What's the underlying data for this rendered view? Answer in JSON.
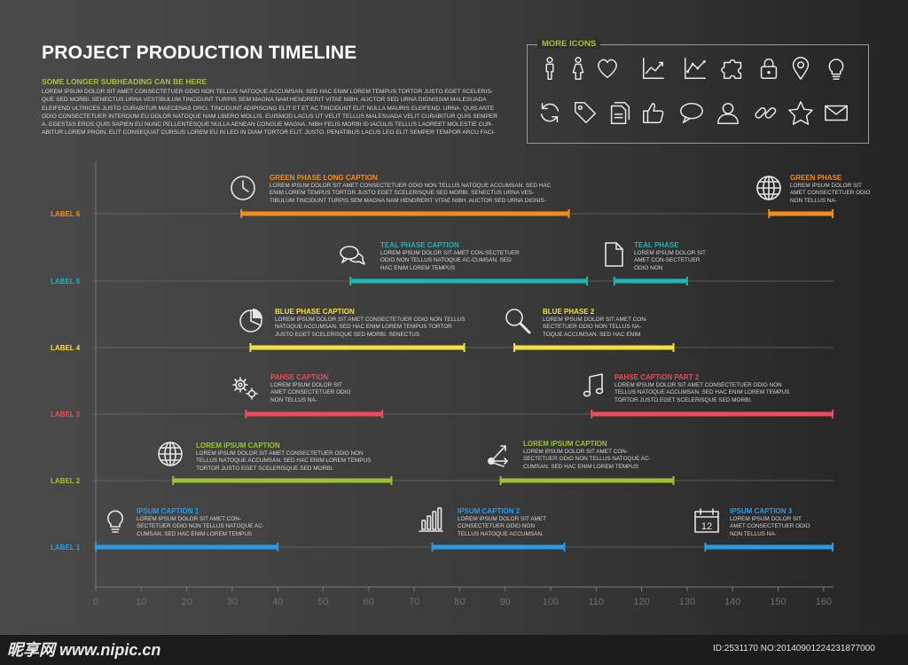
{
  "header": {
    "title": "PROJECT PRODUCTION TIMELINE",
    "subheading": "SOME LONGER SUBHEADING CAN BE HERE",
    "intro": "LOREM IPSUM DOLOR SIT AMET CONSECTETUER ODIO NON TELLUS NATOQUE ACCUMSAN. SED HAC ENIM LOREM TEMPUS TORTOR JUSTO EGET SCELERIS-QUE SED MORBI. SENECTUS URNA VESTIBULUM TINCIDUNT TURPIS SEM MAGNA NAM HENDRERIT VITAE NIBH. AUCTOR SED URNA DIGNISSIM MALESUADA ELEIFEND ULTRICES JUSTO CURABITUR MAECENAS ORCI. TINCIDUNT ADIPISCING ELIT ET ET AC TINCIDUNT ELIT NULLA MAURIS ELEIFEND. URNA. QUIS ANTE ODIO CONSECTETUER INTERDUM EU DOLOR NATOQUE NAM LIBERO MOLLIS. EUISMOD LACUS UT VELIT TELLUS MALESUADA VELIT CURABITUR QUIS SEMPER A. EGESTAS EROS QUIS SAPIEN EU NUNC PELLENTESQUE NULLA AENEAN CONGUE MAGNA. NIBH FELIS MORBI ID IACULIS TELLUS LAOREET MOLESTIE CUR-ABITUR LOREM PROIN. ELIT CONSEQUAT CURSUS LOREM EU IN LEO IN DIAM TORTOR ELIT. JUSTO. PENATIBUS LACUS LEO ELIT SEMPER TEMPOR ARCU FACI-"
  },
  "more_icons": {
    "title": "MORE ICONS",
    "icons": [
      "male-icon",
      "female-icon",
      "heart-icon",
      "line-chart-icon",
      "scatter-chart-icon",
      "puzzle-icon",
      "lock-icon",
      "map-pin-icon",
      "lightbulb-icon",
      "refresh-icon",
      "tag-icon",
      "documents-icon",
      "thumbs-up-icon",
      "speech-bubble-icon",
      "user-icon",
      "chain-link-icon",
      "star-icon",
      "envelope-icon"
    ]
  },
  "chart_data": {
    "type": "gantt",
    "x_ticks": [
      0,
      10,
      20,
      30,
      40,
      50,
      60,
      70,
      80,
      90,
      100,
      110,
      120,
      130,
      140,
      150,
      160
    ],
    "xlim": [
      0,
      162
    ],
    "grid": "horizontal",
    "rows": [
      {
        "label": "LABEL 6",
        "color": "#f28c1e",
        "bars": [
          {
            "start": 32,
            "end": 104
          },
          {
            "start": 148,
            "end": 162
          }
        ]
      },
      {
        "label": "LABEL 5",
        "color": "#1fb5b5",
        "bars": [
          {
            "start": 56,
            "end": 108
          },
          {
            "start": 114,
            "end": 130
          }
        ]
      },
      {
        "label": "LABEL 4",
        "color": "#f2e040",
        "bars": [
          {
            "start": 34,
            "end": 81
          },
          {
            "start": 92,
            "end": 127
          }
        ]
      },
      {
        "label": "LABEL 3",
        "color": "#ee4b5b",
        "bars": [
          {
            "start": 33,
            "end": 63
          },
          {
            "start": 109,
            "end": 162
          }
        ]
      },
      {
        "label": "LABEL 2",
        "color": "#9cc230",
        "bars": [
          {
            "start": 17,
            "end": 65
          },
          {
            "start": 89,
            "end": 127
          }
        ]
      },
      {
        "label": "LABEL 1",
        "color": "#2b9ae6",
        "bars": [
          {
            "start": 0,
            "end": 40
          },
          {
            "start": 74,
            "end": 103
          },
          {
            "start": 134,
            "end": 162
          }
        ]
      }
    ],
    "captions": [
      {
        "title": "GREEN PHASE LONG CAPTION",
        "text": "LOREM IPSUM DOLOR SIT AMET CONSECTETUER ODIO NON TELLUS NATOQUE ACCUMSAN. SED HAC ENIM LOREM TEMPUS TORTOR JUSTO EGET SCELERISQUE SED MORBI. SENECTUS URNA VES-TIBULUM TINCIDUNT TURPIS SEM MAGNA NAM HENDRERIT VITAE NIBH. AUCTOR SED URNA DIGNIS-",
        "icon": "clock-icon",
        "color": "#f28c1e"
      },
      {
        "title": "GREEN PHASE",
        "text": "LOREM IPSUM DOLOR SIT AMET CONSECTETUER ODIO NON TELLUS NA-",
        "icon": "globe-icon",
        "color": "#f28c1e"
      },
      {
        "title": "TEAL PHASE CAPTION",
        "text": "LOREM IPSUM DOLOR SIT AMET CON-SECTETUER ODIO NON TELLUS NATOQUE AC-CUMSAN. SED HAC ENIM LOREM TEMPUS",
        "icon": "chat-icon",
        "color": "#1fb5b5"
      },
      {
        "title": "TEAL PHASE",
        "text": "LOREM IPSUM DOLOR SIT AMET CON-SECTETUER ODIO NON",
        "icon": "document-icon",
        "color": "#1fb5b5"
      },
      {
        "title": "BLUE PHASE CAPTION",
        "text": "LOREM IPSUM DOLOR SIT AMET CONSECTETUER ODIO NON TELLUS NATOQUE ACCUMSAN. SED HAC ENIM LOREM TEMPUS TORTOR JUSTO EGET SCELERISQUE SED MORBI. SENECTUS",
        "icon": "pie-chart-icon",
        "color": "#f2e040"
      },
      {
        "title": "BLUE PHASE 2",
        "text": "LOREM IPSUM DOLOR SIT AMET CON-SECTETUER ODIO NON TELLUS NA-TOQUE ACCUMSAN. SED HAC ENIM",
        "icon": "magnifier-icon",
        "color": "#f2e040"
      },
      {
        "title": "PAHSE CAPTION",
        "text": "LOREM IPSUM DOLOR SIT AMET CONSECTETUER ODIO NON TELLUS NA-",
        "icon": "gears-icon",
        "color": "#ee4b5b"
      },
      {
        "title": "PAHSE CAPTION PART 2",
        "text": "LOREM IPSUM DOLOR SIT AMET CONSECTETUER ODIO NON TELLUS NATOQUE ACCUMSAN. SED HAC ENIM LOREM TEMPUS TORTOR JUSTO EGET SCELERISQUE SED MORBI.",
        "icon": "music-note-icon",
        "color": "#ee4b5b"
      },
      {
        "title": "LOREM IPSUM CAPTION",
        "text": "LOREM IPSUM DOLOR SIT AMET CONSECTETUER ODIO NON TELLUS NATOQUE ACCUMSAN. SED HAC ENIM LOREM TEMPUS TORTOR JUSTO EGET SCELERISQUE SED MORBI.",
        "icon": "globe-icon",
        "color": "#9cc230"
      },
      {
        "title": "LOREM IPSUM CAPTION",
        "text": "LOREM IPSUM DOLOR SIT AMET CON-SECTETUER ODIO NON TELLUS NATOQUE AC-CUMSAN. SED HAC ENIM LOREM TEMPUS",
        "icon": "network-icon",
        "color": "#9cc230"
      },
      {
        "title": "IPSUM CAPTION 1",
        "text": "LOREM IPSUM DOLOR SIT AMET CON-SECTETUER ODIO NON TELLUS NATOQUE AC-CUMSAN. SED HAC ENIM LOREM TEMPUS",
        "icon": "lightbulb-icon",
        "color": "#2b9ae6"
      },
      {
        "title": "IPSUM CAPTION 2",
        "text": "LOREM IPSUM DOLOR SIT AMET CONSECTETUER ODIO NON TELLUS NATOQUE ACCUMSAN.",
        "icon": "bar-chart-icon",
        "color": "#2b9ae6"
      },
      {
        "title": "IPSUM CAPTION 3",
        "text": "LOREM IPSUM DOLOR SIT AMET CONSECTETUER ODIO NON TELLUS NA-",
        "icon": "calendar-icon",
        "color": "#2b9ae6",
        "icon_text": "12"
      }
    ]
  },
  "footer": {
    "watermark": "昵享网 www.nipic.cn",
    "id_text": "ID:2531170 NO:20140901224231877000"
  }
}
